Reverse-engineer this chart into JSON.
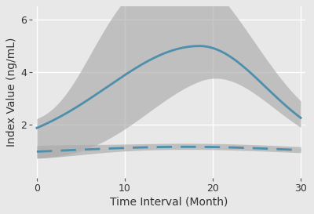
{
  "title": "",
  "xlabel": "Time Interval (Month)",
  "ylabel": "Index Value (ng/mL)",
  "xlim": [
    -0.5,
    30.5
  ],
  "ylim": [
    0,
    6.5
  ],
  "xticks": [
    0,
    10,
    20,
    30
  ],
  "yticks": [
    2,
    4,
    6
  ],
  "background_color": "#e8e8e8",
  "plot_bg_color": "#e8e8e8",
  "grid_color": "#ffffff",
  "line_color": "#4d8fac",
  "ci_color": "#aaaaaa",
  "ci_alpha": 0.65
}
